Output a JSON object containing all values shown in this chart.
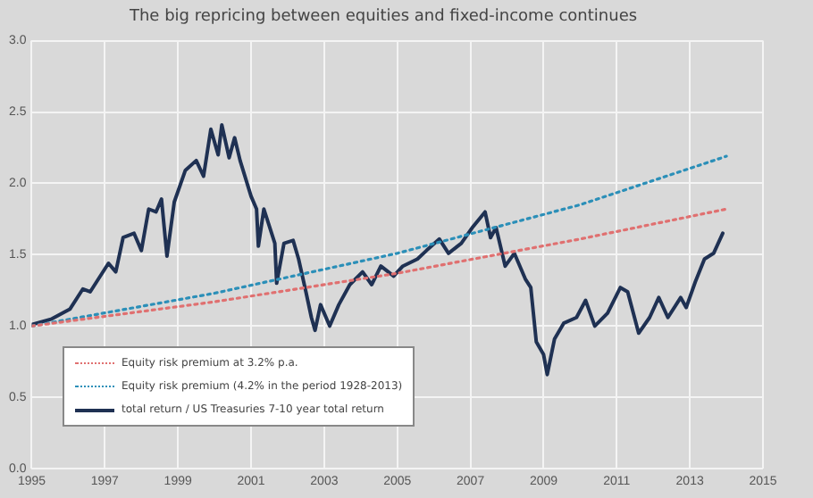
{
  "chart_data": {
    "type": "line",
    "title": "The big repricing between equities and fixed-income continues",
    "xlim": [
      1995,
      2015
    ],
    "xticks": [
      1995,
      1997,
      1999,
      2001,
      2003,
      2005,
      2007,
      2009,
      2011,
      2013,
      2015
    ],
    "ylim": [
      0,
      3
    ],
    "yticks": [
      {
        "value": 0,
        "label": "0.0"
      },
      {
        "value": 0.5,
        "label": "0.5"
      },
      {
        "value": 1,
        "label": "1.0"
      },
      {
        "value": 1.5,
        "label": "1.5"
      },
      {
        "value": 2,
        "label": "2.0"
      },
      {
        "value": 2.5,
        "label": "2.5"
      },
      {
        "value": 3,
        "label": "3.0"
      }
    ],
    "grid": true,
    "legend": "bottom left",
    "marker": "none",
    "series": [
      {
        "name": "Equity risk premium at 3.2% p.a.",
        "color": "#e07070",
        "line_style": "dotted",
        "x": [
          1995,
          2000,
          2005,
          2010,
          2014
        ],
        "values": [
          1.0,
          1.17,
          1.37,
          1.61,
          1.82
        ]
      },
      {
        "name": "Equity risk premium (4.2% in the period 1928-2013)",
        "color": "#2b8fb8",
        "line_style": "dotted",
        "x": [
          1995,
          2000,
          2005,
          2010,
          2014
        ],
        "values": [
          1.0,
          1.23,
          1.51,
          1.85,
          2.19
        ]
      },
      {
        "name": "total return / US Treasuries 7-10 year total return",
        "color": "#1f3153",
        "line_style": "solid",
        "x": [
          1995.0,
          1995.55,
          1996.05,
          1996.4,
          1996.6,
          1997.1,
          1997.3,
          1997.5,
          1997.8,
          1998.0,
          1998.2,
          1998.4,
          1998.55,
          1998.7,
          1998.9,
          1999.2,
          1999.5,
          1999.7,
          1999.9,
          2000.1,
          2000.2,
          2000.4,
          2000.55,
          2000.7,
          2001.0,
          2001.15,
          2001.2,
          2001.35,
          2001.65,
          2001.7,
          2001.9,
          2002.15,
          2002.3,
          2002.5,
          2002.65,
          2002.75,
          2002.9,
          2003.15,
          2003.4,
          2003.7,
          2004.05,
          2004.3,
          2004.55,
          2004.9,
          2005.15,
          2005.55,
          2005.8,
          2006.15,
          2006.4,
          2006.75,
          2007.05,
          2007.4,
          2007.55,
          2007.7,
          2007.95,
          2008.2,
          2008.5,
          2008.65,
          2008.8,
          2009.0,
          2009.1,
          2009.3,
          2009.55,
          2009.9,
          2010.15,
          2010.4,
          2010.75,
          2011.1,
          2011.3,
          2011.6,
          2011.9,
          2012.15,
          2012.4,
          2012.75,
          2012.9,
          2013.15,
          2013.4,
          2013.65,
          2013.9
        ],
        "values": [
          1.01,
          1.05,
          1.12,
          1.26,
          1.24,
          1.44,
          1.38,
          1.62,
          1.65,
          1.53,
          1.82,
          1.8,
          1.89,
          1.49,
          1.87,
          2.09,
          2.16,
          2.05,
          2.38,
          2.2,
          2.41,
          2.18,
          2.32,
          2.16,
          1.91,
          1.82,
          1.56,
          1.82,
          1.58,
          1.3,
          1.58,
          1.6,
          1.47,
          1.24,
          1.06,
          0.97,
          1.15,
          1.0,
          1.15,
          1.29,
          1.38,
          1.29,
          1.42,
          1.35,
          1.42,
          1.47,
          1.53,
          1.61,
          1.51,
          1.58,
          1.69,
          1.8,
          1.62,
          1.69,
          1.42,
          1.51,
          1.33,
          1.27,
          0.89,
          0.8,
          0.66,
          0.91,
          1.02,
          1.06,
          1.18,
          1.0,
          1.09,
          1.27,
          1.24,
          0.95,
          1.06,
          1.2,
          1.06,
          1.2,
          1.13,
          1.31,
          1.47,
          1.51,
          1.65
        ]
      }
    ]
  }
}
